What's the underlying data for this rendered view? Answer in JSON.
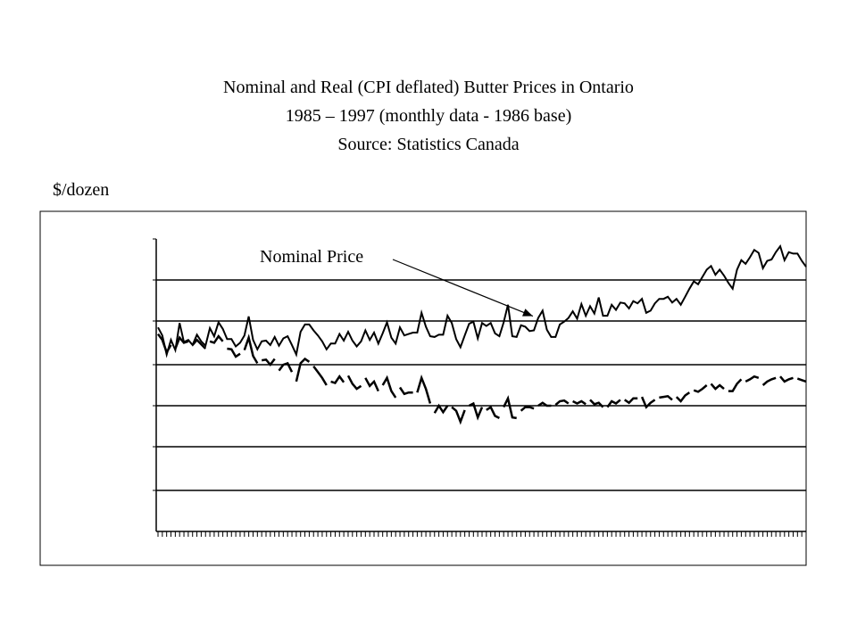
{
  "chart_data": {
    "type": "line",
    "title": "Nominal and Real (CPI deflated) Butter Prices in Ontario",
    "subtitle": "1985 – 1997 (monthly data - 1986 base)",
    "source": "Source: Statistics Canada",
    "ylabel": "$/dozen",
    "grid": true,
    "x_ticks_per_month": true,
    "annotation": {
      "text": "Nominal Price",
      "target_series": 0,
      "target_month_index": 88
    },
    "series": [
      {
        "values": [
          3.79,
          3.68,
          3.42,
          3.62,
          3.48,
          3.85,
          3.59,
          3.62,
          3.55,
          3.69,
          3.6,
          3.54,
          3.78,
          3.67,
          3.86,
          3.77,
          3.63,
          3.63,
          3.53,
          3.58,
          3.68,
          3.94,
          3.62,
          3.49,
          3.6,
          3.61,
          3.55,
          3.66,
          3.54,
          3.64,
          3.67,
          3.55,
          3.42,
          3.73,
          3.83,
          3.83,
          3.75,
          3.68,
          3.6,
          3.49,
          3.57,
          3.57,
          3.7,
          3.61,
          3.73,
          3.61,
          3.53,
          3.6,
          3.75,
          3.62,
          3.72,
          3.57,
          3.71,
          3.86,
          3.65,
          3.57,
          3.79,
          3.68,
          3.7,
          3.72,
          3.72,
          3.99,
          3.8,
          3.67,
          3.66,
          3.69,
          3.69,
          3.95,
          3.85,
          3.63,
          3.52,
          3.68,
          3.84,
          3.87,
          3.64,
          3.85,
          3.81,
          3.85,
          3.71,
          3.67,
          3.86,
          4.1,
          3.67,
          3.66,
          3.82,
          3.8,
          3.74,
          3.75,
          3.92,
          4.02,
          3.76,
          3.66,
          3.66,
          3.83,
          3.87,
          3.92,
          4.01,
          3.91,
          4.11,
          3.95,
          4.08,
          3.98,
          4.2,
          3.95,
          3.95,
          4.1,
          4.03,
          4.13,
          4.12,
          4.05,
          4.15,
          4.12,
          4.18,
          3.99,
          4.02,
          4.12,
          4.18,
          4.18,
          4.21,
          4.13,
          4.18,
          4.1,
          4.21,
          4.32,
          4.42,
          4.38,
          4.48,
          4.58,
          4.63,
          4.51,
          4.58,
          4.5,
          4.4,
          4.32,
          4.58,
          4.71,
          4.66,
          4.75,
          4.85,
          4.81,
          4.6,
          4.7,
          4.72,
          4.82,
          4.9,
          4.71,
          4.82,
          4.8,
          4.8,
          4.7,
          4.62
        ]
      },
      {
        "values": [
          3.7,
          3.62,
          3.45,
          3.55,
          3.5,
          3.65,
          3.58,
          3.6,
          3.55,
          3.62,
          3.56,
          3.5,
          3.6,
          3.58,
          3.67,
          3.6,
          3.5,
          3.49,
          3.39,
          3.43,
          3.48,
          3.65,
          3.4,
          3.3,
          3.34,
          3.35,
          3.28,
          3.36,
          3.2,
          3.28,
          3.3,
          3.18,
          3.05,
          3.3,
          3.36,
          3.32,
          3.26,
          3.18,
          3.1,
          3.0,
          3.05,
          3.03,
          3.12,
          3.04,
          3.13,
          3.02,
          2.95,
          2.99,
          3.1,
          2.99,
          3.05,
          2.92,
          3.0,
          3.1,
          2.92,
          2.83,
          2.97,
          2.88,
          2.9,
          2.9,
          2.9,
          3.1,
          2.95,
          2.75,
          2.62,
          2.72,
          2.63,
          2.72,
          2.7,
          2.65,
          2.5,
          2.66,
          2.72,
          2.75,
          2.56,
          2.7,
          2.66,
          2.7,
          2.58,
          2.55,
          2.7,
          2.82,
          2.56,
          2.55,
          2.65,
          2.7,
          2.7,
          2.68,
          2.72,
          2.76,
          2.72,
          2.72,
          2.73,
          2.78,
          2.79,
          2.75,
          2.78,
          2.75,
          2.78,
          2.74,
          2.8,
          2.74,
          2.76,
          2.7,
          2.7,
          2.78,
          2.75,
          2.8,
          2.8,
          2.76,
          2.82,
          2.82,
          2.84,
          2.7,
          2.76,
          2.8,
          2.83,
          2.84,
          2.85,
          2.8,
          2.84,
          2.78,
          2.86,
          2.9,
          2.93,
          2.91,
          2.95,
          3.0,
          3.02,
          2.95,
          3.0,
          2.95,
          2.92,
          2.92,
          3.02,
          3.08,
          3.05,
          3.08,
          3.12,
          3.1,
          3.0,
          3.05,
          3.08,
          3.1,
          3.12,
          3.05,
          3.08,
          3.1,
          3.09,
          3.07,
          3.05
        ]
      }
    ]
  }
}
